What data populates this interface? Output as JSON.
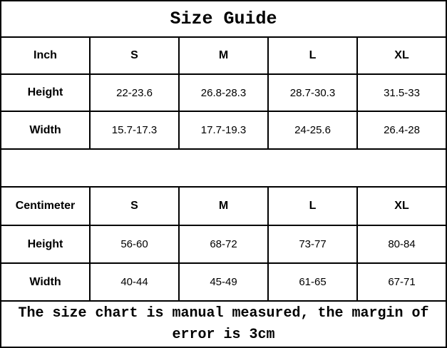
{
  "title": "Size Guide",
  "sizes": [
    "S",
    "M",
    "L",
    "XL"
  ],
  "inch_section": {
    "unit_label": "Inch",
    "rows": [
      {
        "label": "Height",
        "values": [
          "22-23.6",
          "26.8-28.3",
          "28.7-30.3",
          "31.5-33"
        ]
      },
      {
        "label": "Width",
        "values": [
          "15.7-17.3",
          "17.7-19.3",
          "24-25.6",
          "26.4-28"
        ]
      }
    ]
  },
  "cm_section": {
    "unit_label": "Centimeter",
    "rows": [
      {
        "label": "Height",
        "values": [
          "56-60",
          "68-72",
          "73-77",
          "80-84"
        ]
      },
      {
        "label": "Width",
        "values": [
          "40-44",
          "45-49",
          "61-65",
          "67-71"
        ]
      }
    ]
  },
  "footer_note": "The size chart is manual measured, the margin of error is 3cm",
  "colors": {
    "border": "#000000",
    "background": "#ffffff",
    "text": "#000000"
  },
  "chart_data": [
    {
      "type": "table",
      "title": "Size Guide",
      "columns": [
        "Inch",
        "S",
        "M",
        "L",
        "XL"
      ],
      "rows": [
        [
          "Height",
          "22-23.6",
          "26.8-28.3",
          "28.7-30.3",
          "31.5-33"
        ],
        [
          "Width",
          "15.7-17.3",
          "17.7-19.3",
          "24-25.6",
          "26.4-28"
        ]
      ]
    },
    {
      "type": "table",
      "title": "Size Guide",
      "columns": [
        "Centimeter",
        "S",
        "M",
        "L",
        "XL"
      ],
      "rows": [
        [
          "Height",
          "56-60",
          "68-72",
          "73-77",
          "80-84"
        ],
        [
          "Width",
          "40-44",
          "45-49",
          "61-65",
          "67-71"
        ]
      ],
      "footnote": "The size chart is manual measured, the margin of error is 3cm"
    }
  ]
}
